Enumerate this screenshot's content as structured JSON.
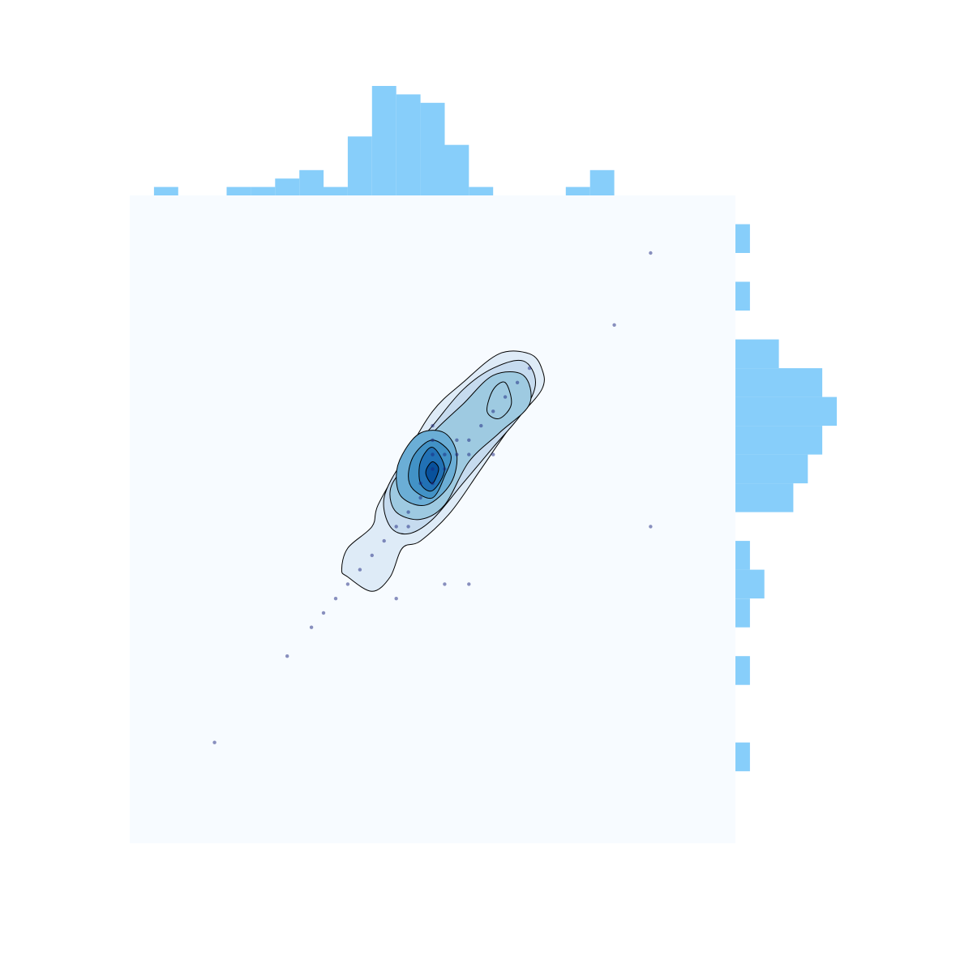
{
  "chart_data": {
    "type": "scatter",
    "title": "",
    "xlabel": "",
    "ylabel": "",
    "xlim": [
      0,
      50
    ],
    "ylim": [
      0,
      45
    ],
    "grid": false,
    "legend": "none",
    "colors": {
      "background": "#f7fbff",
      "histogram": "#87cefa",
      "point": "#1a237e",
      "contour_line": "#000000",
      "kde_levels": [
        "#deebf7",
        "#c6dbef",
        "#9ecae1",
        "#6baed6",
        "#4292c6",
        "#2171b5",
        "#08519c"
      ]
    },
    "points": [
      {
        "x": 7,
        "y": 7
      },
      {
        "x": 13,
        "y": 13
      },
      {
        "x": 15,
        "y": 15
      },
      {
        "x": 16,
        "y": 16
      },
      {
        "x": 17,
        "y": 17
      },
      {
        "x": 18,
        "y": 18
      },
      {
        "x": 19,
        "y": 19
      },
      {
        "x": 20,
        "y": 20
      },
      {
        "x": 21,
        "y": 21
      },
      {
        "x": 22,
        "y": 22
      },
      {
        "x": 22,
        "y": 17
      },
      {
        "x": 23,
        "y": 22
      },
      {
        "x": 23,
        "y": 23
      },
      {
        "x": 24,
        "y": 24
      },
      {
        "x": 24,
        "y": 25
      },
      {
        "x": 25,
        "y": 25
      },
      {
        "x": 25,
        "y": 26
      },
      {
        "x": 25,
        "y": 27
      },
      {
        "x": 25,
        "y": 28
      },
      {
        "x": 25,
        "y": 29
      },
      {
        "x": 26,
        "y": 26
      },
      {
        "x": 26,
        "y": 27
      },
      {
        "x": 26,
        "y": 18
      },
      {
        "x": 27,
        "y": 27
      },
      {
        "x": 27,
        "y": 28
      },
      {
        "x": 28,
        "y": 18
      },
      {
        "x": 28,
        "y": 27
      },
      {
        "x": 28,
        "y": 28
      },
      {
        "x": 29,
        "y": 29
      },
      {
        "x": 30,
        "y": 27
      },
      {
        "x": 30,
        "y": 30
      },
      {
        "x": 31,
        "y": 31
      },
      {
        "x": 32,
        "y": 32
      },
      {
        "x": 33,
        "y": 33
      },
      {
        "x": 40,
        "y": 36
      },
      {
        "x": 43,
        "y": 22
      },
      {
        "x": 43,
        "y": 41
      }
    ],
    "x_hist": {
      "bin_edges": [
        2,
        4,
        6,
        8,
        10,
        12,
        14,
        16,
        18,
        20,
        22,
        24,
        26,
        28,
        30,
        32,
        34,
        36,
        38,
        40,
        42,
        44
      ],
      "counts": [
        1,
        0,
        0,
        1,
        1,
        2,
        3,
        1,
        7,
        13,
        12,
        11,
        6,
        1,
        0,
        0,
        0,
        1,
        3,
        0,
        0
      ]
    },
    "y_hist": {
      "bin_edges": [
        5,
        7,
        9,
        11,
        13,
        15,
        17,
        19,
        21,
        23,
        25,
        27,
        29,
        31,
        33,
        35,
        37,
        39,
        41,
        43
      ],
      "counts": [
        1,
        0,
        0,
        1,
        0,
        1,
        2,
        1,
        0,
        4,
        5,
        6,
        7,
        6,
        3,
        0,
        1,
        0,
        1
      ]
    },
    "kde_contours": [
      [
        [
          18.0,
          18.5
        ],
        [
          20.0,
          17.5
        ],
        [
          21.5,
          18.5
        ],
        [
          22.5,
          20.5
        ],
        [
          24.0,
          21.0
        ],
        [
          26.5,
          23.0
        ],
        [
          29.0,
          26.0
        ],
        [
          31.5,
          29.0
        ],
        [
          34.0,
          31.5
        ],
        [
          34.0,
          33.0
        ],
        [
          33.0,
          34.0
        ],
        [
          30.5,
          34.0
        ],
        [
          27.5,
          32.0
        ],
        [
          25.0,
          30.0
        ],
        [
          22.5,
          26.5
        ],
        [
          20.5,
          23.5
        ],
        [
          20.0,
          22.0
        ],
        [
          18.0,
          20.5
        ],
        [
          17.5,
          19.0
        ]
      ],
      [
        [
          21.5,
          22.0
        ],
        [
          23.0,
          21.5
        ],
        [
          25.0,
          22.5
        ],
        [
          27.5,
          25.0
        ],
        [
          30.0,
          27.5
        ],
        [
          32.5,
          30.0
        ],
        [
          33.5,
          32.0
        ],
        [
          32.5,
          33.5
        ],
        [
          30.0,
          33.0
        ],
        [
          27.5,
          31.5
        ],
        [
          25.0,
          29.0
        ],
        [
          22.5,
          26.5
        ],
        [
          21.0,
          24.0
        ]
      ],
      [
        [
          22.0,
          23.0
        ],
        [
          24.0,
          22.5
        ],
        [
          26.0,
          23.5
        ],
        [
          28.0,
          26.5
        ],
        [
          30.5,
          28.5
        ],
        [
          33.0,
          30.5
        ],
        [
          32.5,
          32.5
        ],
        [
          30.0,
          32.5
        ],
        [
          27.5,
          30.5
        ],
        [
          25.0,
          28.5
        ],
        [
          22.5,
          26.0
        ],
        [
          21.5,
          24.5
        ]
      ],
      [
        [
          22.5,
          24.0
        ],
        [
          24.5,
          23.5
        ],
        [
          26.5,
          25.0
        ],
        [
          27.0,
          27.0
        ],
        [
          26.0,
          28.5
        ],
        [
          24.0,
          28.5
        ],
        [
          22.5,
          27.0
        ],
        [
          22.0,
          25.5
        ]
      ],
      [
        [
          23.5,
          24.5
        ],
        [
          25.0,
          24.0
        ],
        [
          26.0,
          25.5
        ],
        [
          26.5,
          27.0
        ],
        [
          25.0,
          28.0
        ],
        [
          23.5,
          27.0
        ],
        [
          23.0,
          25.5
        ]
      ],
      [
        [
          24.0,
          25.0
        ],
        [
          25.0,
          24.5
        ],
        [
          26.0,
          26.0
        ],
        [
          25.0,
          27.5
        ],
        [
          24.0,
          26.5
        ]
      ],
      [
        [
          24.5,
          25.5
        ],
        [
          25.0,
          25.0
        ],
        [
          25.5,
          26.0
        ],
        [
          25.0,
          26.5
        ],
        [
          24.5,
          26.0
        ]
      ],
      [
        [
          29.5,
          30.0
        ],
        [
          30.5,
          29.5
        ],
        [
          31.5,
          30.5
        ],
        [
          31.0,
          32.0
        ],
        [
          30.0,
          31.5
        ]
      ]
    ]
  }
}
